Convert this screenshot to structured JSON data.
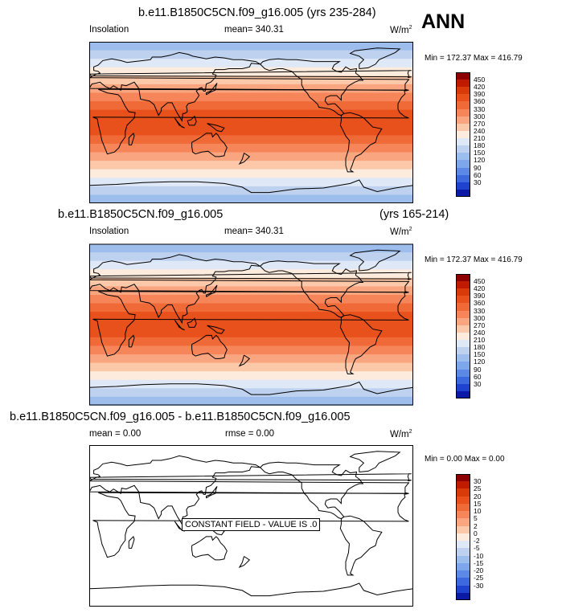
{
  "header": {
    "season": "ANN"
  },
  "panels": [
    {
      "title": "b.e11.B1850C5CN.f09_g16.005 (yrs 235-284)",
      "left_label": "Insolation",
      "center_label": "mean= 340.31",
      "unit_base": "W/m",
      "unit_exp": "2",
      "minmax": "Min = 172.37 Max = 416.79"
    },
    {
      "title": "b.e11.B1850C5CN.f09_g16.005",
      "title_right": "(yrs 165-214)",
      "left_label": "Insolation",
      "center_label": "mean= 340.31",
      "unit_base": "W/m",
      "unit_exp": "2",
      "minmax": "Min = 172.37 Max = 416.79"
    },
    {
      "title": "b.e11.B1850C5CN.f09_g16.005 - b.e11.B1850C5CN.f09_g16.005",
      "left_label": "mean =   0.00",
      "center_label": "rmse =   0.00",
      "unit_base": "W/m",
      "unit_exp": "2",
      "minmax": "Min =   0.00 Max =   0.00",
      "annotation": "CONSTANT FIELD - VALUE IS .0"
    }
  ],
  "colorbar_abs": {
    "labels": [
      "450",
      "420",
      "390",
      "360",
      "330",
      "300",
      "270",
      "240",
      "210",
      "180",
      "150",
      "120",
      "90",
      "60",
      "30"
    ],
    "colors": [
      "#8c0000",
      "#c01a00",
      "#d83a0a",
      "#e8501c",
      "#f06a38",
      "#f6865a",
      "#f9a680",
      "#fcc8aa",
      "#fdecdd",
      "#dfe8f6",
      "#bed1ef",
      "#9dbdec",
      "#7ea6ea",
      "#5d89e6",
      "#3e68dd",
      "#1f43cf",
      "#0a1aa6"
    ]
  },
  "colorbar_diff": {
    "labels": [
      "30",
      "25",
      "20",
      "15",
      "10",
      "5",
      "2",
      "0",
      "-2",
      "-5",
      "-10",
      "-15",
      "-20",
      "-25",
      "-30"
    ],
    "colors": [
      "#8c0000",
      "#c01a00",
      "#d83a0a",
      "#e8501c",
      "#f06a38",
      "#f6865a",
      "#f9a680",
      "#fcc8aa",
      "#fdecdd",
      "#dfe8f6",
      "#bed1ef",
      "#9dbdec",
      "#7ea6ea",
      "#5d89e6",
      "#3e68dd",
      "#1f43cf",
      "#0a1aa6"
    ]
  },
  "chart_data": [
    {
      "type": "heatmap",
      "title": "b.e11.B1850C5CN.f09_g16.005 (yrs 235-284)",
      "variable": "Insolation",
      "units": "W/m2",
      "mean": 340.31,
      "min": 172.37,
      "max": 416.79,
      "lat_band_values": [
        175,
        195,
        225,
        255,
        285,
        315,
        345,
        375,
        405,
        415,
        405,
        375,
        345,
        315,
        285,
        255,
        225,
        195,
        175
      ],
      "colorbar_levels": [
        30,
        60,
        90,
        120,
        150,
        180,
        210,
        240,
        270,
        300,
        330,
        360,
        390,
        420,
        450
      ]
    },
    {
      "type": "heatmap",
      "title": "b.e11.B1850C5CN.f09_g16.005 (yrs 165-214)",
      "variable": "Insolation",
      "units": "W/m2",
      "mean": 340.31,
      "min": 172.37,
      "max": 416.79,
      "lat_band_values": [
        175,
        195,
        225,
        255,
        285,
        315,
        345,
        375,
        405,
        415,
        405,
        375,
        345,
        315,
        285,
        255,
        225,
        195,
        175
      ],
      "colorbar_levels": [
        30,
        60,
        90,
        120,
        150,
        180,
        210,
        240,
        270,
        300,
        330,
        360,
        390,
        420,
        450
      ]
    },
    {
      "type": "heatmap",
      "title": "b.e11.B1850C5CN.f09_g16.005 - b.e11.B1850C5CN.f09_g16.005",
      "units": "W/m2",
      "mean": 0.0,
      "rmse": 0.0,
      "min": 0.0,
      "max": 0.0,
      "constant_value": 0,
      "colorbar_levels": [
        -30,
        -25,
        -20,
        -15,
        -10,
        -5,
        -2,
        0,
        2,
        5,
        10,
        15,
        20,
        25,
        30
      ]
    }
  ]
}
